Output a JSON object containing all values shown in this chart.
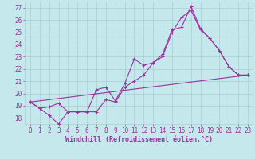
{
  "xlabel": "Windchill (Refroidissement éolien,°C)",
  "xlim": [
    -0.5,
    23.5
  ],
  "ylim": [
    17.5,
    27.5
  ],
  "xticks": [
    0,
    1,
    2,
    3,
    4,
    5,
    6,
    7,
    8,
    9,
    10,
    11,
    12,
    13,
    14,
    15,
    16,
    17,
    18,
    19,
    20,
    21,
    22,
    23
  ],
  "yticks": [
    18,
    19,
    20,
    21,
    22,
    23,
    24,
    25,
    26,
    27
  ],
  "bg_color": "#c5e8ed",
  "line_color": "#993399",
  "grid_color": "#a8cdd4",
  "lines": [
    {
      "x": [
        0,
        1,
        2,
        3,
        4,
        5,
        6,
        7,
        8,
        9,
        10,
        11,
        12,
        13,
        14,
        15,
        16,
        17,
        18,
        19,
        20,
        21,
        22,
        23
      ],
      "y": [
        19.3,
        18.8,
        18.9,
        19.2,
        18.5,
        18.5,
        18.5,
        20.3,
        20.5,
        19.4,
        20.8,
        22.8,
        22.3,
        22.5,
        23.2,
        25.2,
        25.4,
        27.1,
        25.3,
        24.5,
        23.5,
        22.2,
        21.5,
        21.5
      ],
      "marker": true
    },
    {
      "x": [
        0,
        1,
        2,
        3,
        4,
        5,
        6,
        7,
        8,
        9,
        10,
        11,
        12,
        13,
        14,
        15,
        16,
        17,
        18,
        19,
        20,
        21,
        22,
        23
      ],
      "y": [
        19.3,
        18.8,
        18.2,
        17.5,
        18.5,
        18.5,
        18.5,
        18.5,
        19.5,
        19.3,
        20.5,
        21.0,
        21.5,
        22.5,
        23.0,
        25.0,
        26.2,
        26.8,
        25.2,
        24.5,
        23.5,
        22.2,
        21.5,
        21.5
      ],
      "marker": true
    },
    {
      "x": [
        0,
        23
      ],
      "y": [
        19.3,
        21.5
      ],
      "marker": false
    }
  ],
  "font_color": "#993399",
  "tick_fontsize": 5.5,
  "label_fontsize": 6.0
}
